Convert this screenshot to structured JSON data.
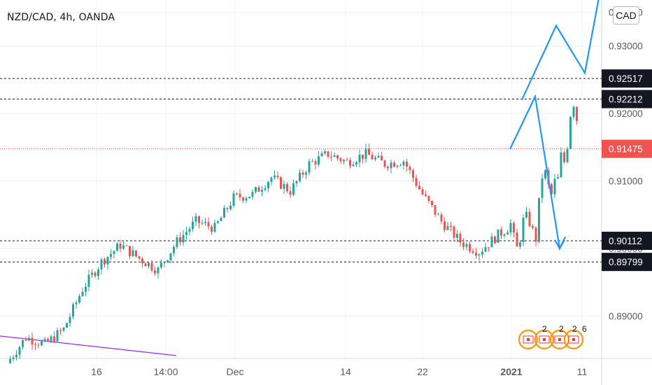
{
  "header": {
    "symbol_title": "NZD/CAD, 4h, OANDA"
  },
  "currency_badge": "CAD",
  "colors": {
    "up": "#26a69a",
    "down": "#ef5350",
    "arrow": "#2196f3",
    "trendline": "#a020f0",
    "level_label_bg": "#131722",
    "current_price_bg": "#ef5350"
  },
  "chart_data": {
    "type": "candlestick",
    "symbol": "NZD/CAD",
    "timeframe": "4h",
    "source": "OANDA",
    "ylim": [
      0.8837,
      0.9368
    ],
    "price_axis_ticks": [
      "0.93000",
      "0.92000",
      "0.91000",
      "0.90000",
      "0.89000"
    ],
    "price_axis_ticks_partially_hidden": [
      "0.93500"
    ],
    "time_axis_labels": [
      "16",
      "14:00",
      "Dec",
      "14",
      "22",
      "2021",
      "11"
    ],
    "current_price": "0.91475",
    "horizontal_levels": [
      "0.92517",
      "0.92212",
      "0.90112",
      "0.89799"
    ],
    "price_path": [
      [
        0.883,
        0.8868
      ],
      [
        0.8868,
        0.8858
      ],
      [
        0.8858,
        0.888
      ],
      [
        0.888,
        0.894
      ],
      [
        0.894,
        0.898
      ],
      [
        0.898,
        0.9005
      ],
      [
        0.9005,
        0.8985
      ],
      [
        0.8985,
        0.8968
      ],
      [
        0.8968,
        0.901
      ],
      [
        0.901,
        0.904
      ],
      [
        0.904,
        0.903
      ],
      [
        0.903,
        0.9075
      ],
      [
        0.9075,
        0.908
      ],
      [
        0.908,
        0.9105
      ],
      [
        0.9105,
        0.9085
      ],
      [
        0.9085,
        0.9125
      ],
      [
        0.9125,
        0.914
      ],
      [
        0.914,
        0.9128
      ],
      [
        0.9128,
        0.914
      ],
      [
        0.914,
        0.9125
      ],
      [
        0.9125,
        0.913
      ],
      [
        0.913,
        0.908
      ],
      [
        0.908,
        0.904
      ],
      [
        0.904,
        0.901
      ],
      [
        0.901,
        0.8995
      ],
      [
        0.8995,
        0.902
      ],
      [
        0.902,
        0.904
      ],
      [
        0.904,
        0.902
      ],
      [
        0.902,
        0.8998
      ],
      [
        0.8998,
        0.901
      ],
      [
        0.901,
        0.904
      ],
      [
        0.904,
        0.9048
      ],
      [
        0.9048,
        0.904
      ],
      [
        0.904,
        0.903
      ],
      [
        0.903,
        0.9005
      ],
      [
        0.9005,
        0.906
      ],
      [
        0.906,
        0.9105
      ],
      [
        0.9105,
        0.9115
      ],
      [
        0.9115,
        0.9095
      ],
      [
        0.9095,
        0.9075
      ],
      [
        0.9075,
        0.91
      ],
      [
        0.91,
        0.9095
      ],
      [
        0.9095,
        0.914
      ],
      [
        0.914,
        0.9125
      ],
      [
        0.9125,
        0.9145
      ],
      [
        0.9145,
        0.9195
      ],
      [
        0.9195,
        0.9218
      ],
      [
        0.9218,
        0.92
      ],
      [
        0.92,
        0.9147
      ]
    ],
    "projection_paths": [
      [
        [
          0.922,
          0.9233
        ],
        [
          0.926,
          0.933
        ],
        [
          0.9382,
          0.9225
        ],
        [
          0.9238,
          0.9278
        ],
        [
          0.9213,
          0.9
        ],
        [
          0.899,
          0.9003
        ],
        [
          0.9017,
          0.9012
        ]
      ]
    ],
    "legend": "none",
    "grid": true
  }
}
